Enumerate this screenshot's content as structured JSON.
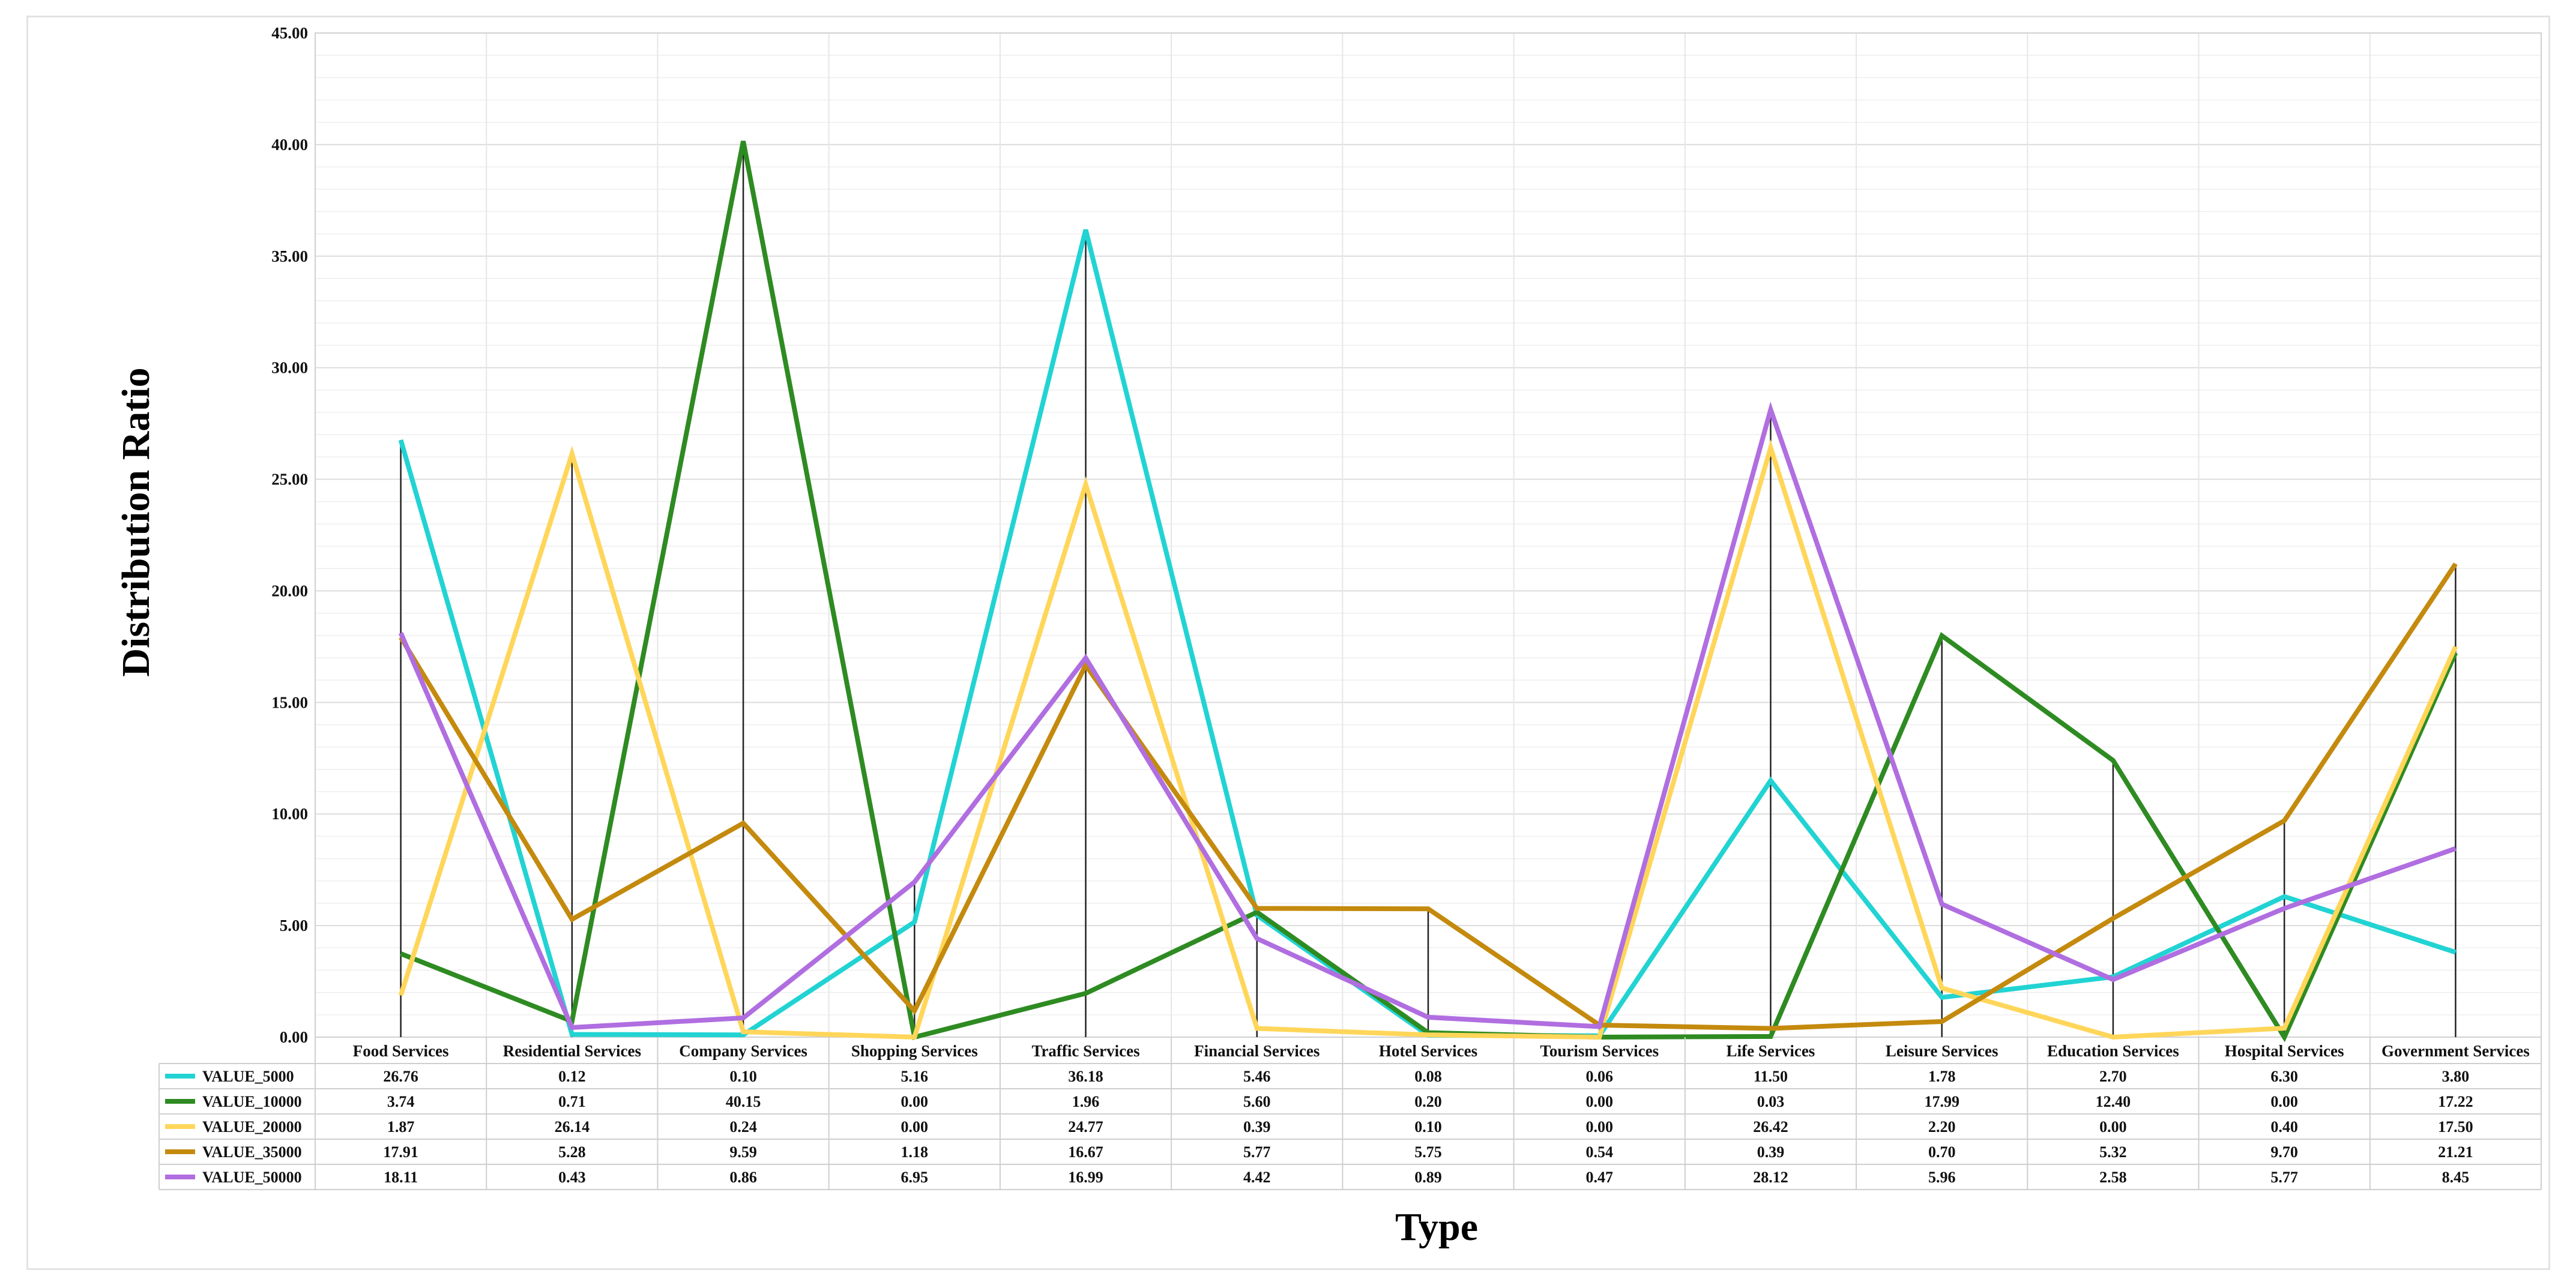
{
  "chart_data": {
    "type": "line",
    "xlabel": "Type",
    "ylabel": "Distribution Ratio",
    "ylim": [
      0,
      45
    ],
    "yticks": [
      "0.00",
      "5.00",
      "10.00",
      "15.00",
      "20.00",
      "25.00",
      "30.00",
      "35.00",
      "40.00",
      "45.00"
    ],
    "grid": true,
    "legend": "data table below the plot",
    "categories": [
      "Food Services",
      "Residential Services",
      "Company Services",
      "Shopping Services",
      "Traffic Services",
      "Financial Services",
      "Hotel Services",
      "Tourism Services",
      "Life Services",
      "Leisure Services",
      "Education Services",
      "Hospital Services",
      "Government Services"
    ],
    "series": [
      {
        "name": "VALUE_5000",
        "color": "#22d3d3",
        "values": [
          26.76,
          0.12,
          0.1,
          5.16,
          36.18,
          5.46,
          0.08,
          0.06,
          11.5,
          1.78,
          2.7,
          6.3,
          3.8
        ],
        "labels": [
          "26.76",
          "0.12",
          "0.10",
          "5.16",
          "36.18",
          "5.46",
          "0.08",
          "0.06",
          "11.50",
          "1.78",
          "2.70",
          "6.30",
          "3.80"
        ]
      },
      {
        "name": "VALUE_10000",
        "color": "#2e8b22",
        "values": [
          3.74,
          0.71,
          40.15,
          0.0,
          1.96,
          5.6,
          0.2,
          0.0,
          0.03,
          17.99,
          12.4,
          0.0,
          17.22
        ],
        "labels": [
          "3.74",
          "0.71",
          "40.15",
          "0.00",
          "1.96",
          "5.60",
          "0.20",
          "0.00",
          "0.03",
          "17.99",
          "12.40",
          "0.00",
          "17.22"
        ]
      },
      {
        "name": "VALUE_20000",
        "color": "#ffd65a",
        "values": [
          1.87,
          26.14,
          0.24,
          0.0,
          24.77,
          0.39,
          0.1,
          0.0,
          26.42,
          2.2,
          0.0,
          0.4,
          17.5
        ],
        "labels": [
          "1.87",
          "26.14",
          "0.24",
          "0.00",
          "24.77",
          "0.39",
          "0.10",
          "0.00",
          "26.42",
          "2.20",
          "0.00",
          "0.40",
          "17.50"
        ]
      },
      {
        "name": "VALUE_35000",
        "color": "#c48a0e",
        "values": [
          17.91,
          5.28,
          9.59,
          1.18,
          16.67,
          5.77,
          5.75,
          0.54,
          0.39,
          0.7,
          5.32,
          9.7,
          21.21
        ],
        "labels": [
          "17.91",
          "5.28",
          "9.59",
          "1.18",
          "16.67",
          "5.77",
          "5.75",
          "0.54",
          "0.39",
          "0.70",
          "5.32",
          "9.70",
          "21.21"
        ]
      },
      {
        "name": "VALUE_50000",
        "color": "#b06ee0",
        "values": [
          18.11,
          0.43,
          0.86,
          6.95,
          16.99,
          4.42,
          0.89,
          0.47,
          28.12,
          5.96,
          2.58,
          5.77,
          8.45
        ],
        "labels": [
          "18.11",
          "0.43",
          "0.86",
          "6.95",
          "16.99",
          "4.42",
          "0.89",
          "0.47",
          "28.12",
          "5.96",
          "2.58",
          "5.77",
          "8.45"
        ]
      }
    ]
  }
}
